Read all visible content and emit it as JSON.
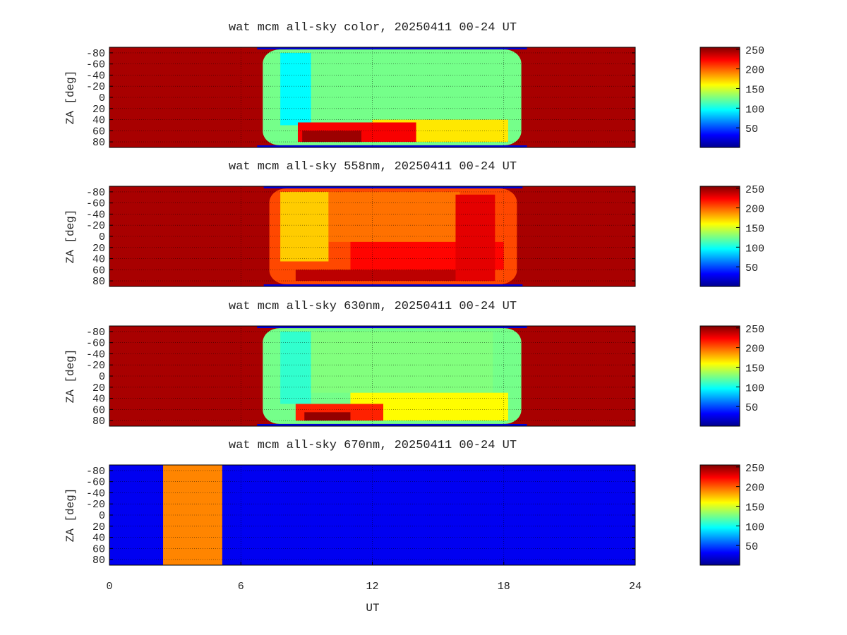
{
  "chart_data": [
    {
      "type": "heatmap",
      "title": "wat mcm all-sky color, 20250411 00-24 UT",
      "ylabel": "ZA [deg]",
      "xlim": [
        0,
        24
      ],
      "ylim": [
        -90,
        90
      ],
      "y_ticks": [
        "-80",
        "-60",
        "-40",
        "-20",
        "0",
        "20",
        "40",
        "60",
        "80"
      ],
      "grid": true,
      "value_range": [
        0,
        255
      ],
      "night_value": 245,
      "day_window_ut": [
        7.0,
        18.8
      ],
      "base_value_in_window": 125,
      "features": [
        {
          "ut": [
            7.8,
            9.2
          ],
          "za": [
            -80,
            50
          ],
          "value": 95
        },
        {
          "ut": [
            9.2,
            17.5
          ],
          "za": [
            -80,
            40
          ],
          "value": 125
        },
        {
          "ut": [
            12.0,
            18.2
          ],
          "za": [
            40,
            80
          ],
          "value": 165
        },
        {
          "ut": [
            8.6,
            14.0
          ],
          "za": [
            45,
            80
          ],
          "value": 225
        },
        {
          "ut": [
            8.8,
            11.5
          ],
          "za": [
            60,
            80
          ],
          "value": 248
        }
      ],
      "colorbar_ticks": [
        "250",
        "200",
        "150",
        "100",
        "50"
      ]
    },
    {
      "type": "heatmap",
      "title": "wat mcm all-sky 558nm, 20250411 00-24 UT",
      "ylabel": "ZA [deg]",
      "xlim": [
        0,
        24
      ],
      "ylim": [
        -90,
        90
      ],
      "y_ticks": [
        "-80",
        "-60",
        "-40",
        "-20",
        "0",
        "20",
        "40",
        "60",
        "80"
      ],
      "grid": true,
      "value_range": [
        0,
        255
      ],
      "night_value": 245,
      "day_window_ut": [
        7.3,
        18.6
      ],
      "base_value_in_window": 205,
      "features": [
        {
          "ut": [
            7.8,
            10.0
          ],
          "za": [
            -80,
            45
          ],
          "value": 172
        },
        {
          "ut": [
            10.0,
            16.0
          ],
          "za": [
            -80,
            10
          ],
          "value": 195
        },
        {
          "ut": [
            11.0,
            18.0
          ],
          "za": [
            10,
            60
          ],
          "value": 222
        },
        {
          "ut": [
            8.5,
            17.5
          ],
          "za": [
            60,
            80
          ],
          "value": 240
        },
        {
          "ut": [
            15.8,
            17.6
          ],
          "za": [
            -75,
            80
          ],
          "value": 230
        }
      ],
      "colorbar_ticks": [
        "250",
        "200",
        "150",
        "100",
        "50"
      ]
    },
    {
      "type": "heatmap",
      "title": "wat mcm all-sky 630nm, 20250411 00-24 UT",
      "ylabel": "ZA [deg]",
      "xlim": [
        0,
        24
      ],
      "ylim": [
        -90,
        90
      ],
      "y_ticks": [
        "-80",
        "-60",
        "-40",
        "-20",
        "0",
        "20",
        "40",
        "60",
        "80"
      ],
      "grid": true,
      "value_range": [
        0,
        255
      ],
      "night_value": 245,
      "day_window_ut": [
        7.0,
        18.8
      ],
      "base_value_in_window": 125,
      "features": [
        {
          "ut": [
            7.8,
            9.2
          ],
          "za": [
            -80,
            50
          ],
          "value": 108
        },
        {
          "ut": [
            9.2,
            17.5
          ],
          "za": [
            -80,
            30
          ],
          "value": 128
        },
        {
          "ut": [
            11.0,
            18.2
          ],
          "za": [
            30,
            80
          ],
          "value": 160
        },
        {
          "ut": [
            8.5,
            12.5
          ],
          "za": [
            50,
            80
          ],
          "value": 215
        },
        {
          "ut": [
            8.9,
            11.0
          ],
          "za": [
            65,
            80
          ],
          "value": 250
        }
      ],
      "colorbar_ticks": [
        "250",
        "200",
        "150",
        "100",
        "50"
      ]
    },
    {
      "type": "heatmap",
      "title": "wat mcm all-sky 670nm, 20250411 00-24 UT",
      "ylabel": "ZA [deg]",
      "xlabel": "UT",
      "xlim": [
        0,
        24
      ],
      "ylim": [
        -90,
        90
      ],
      "x_ticks": [
        "0",
        "6",
        "12",
        "18",
        "24"
      ],
      "y_ticks": [
        "-80",
        "-60",
        "-40",
        "-20",
        "0",
        "20",
        "40",
        "60",
        "80"
      ],
      "grid": true,
      "value_range": [
        0,
        255
      ],
      "uniform_value": 28,
      "blocks": [
        {
          "ut": [
            2.45,
            5.15
          ],
          "za": [
            -90,
            90
          ],
          "value": 190
        }
      ],
      "colorbar_ticks": [
        "250",
        "200",
        "150",
        "100",
        "50"
      ]
    }
  ]
}
